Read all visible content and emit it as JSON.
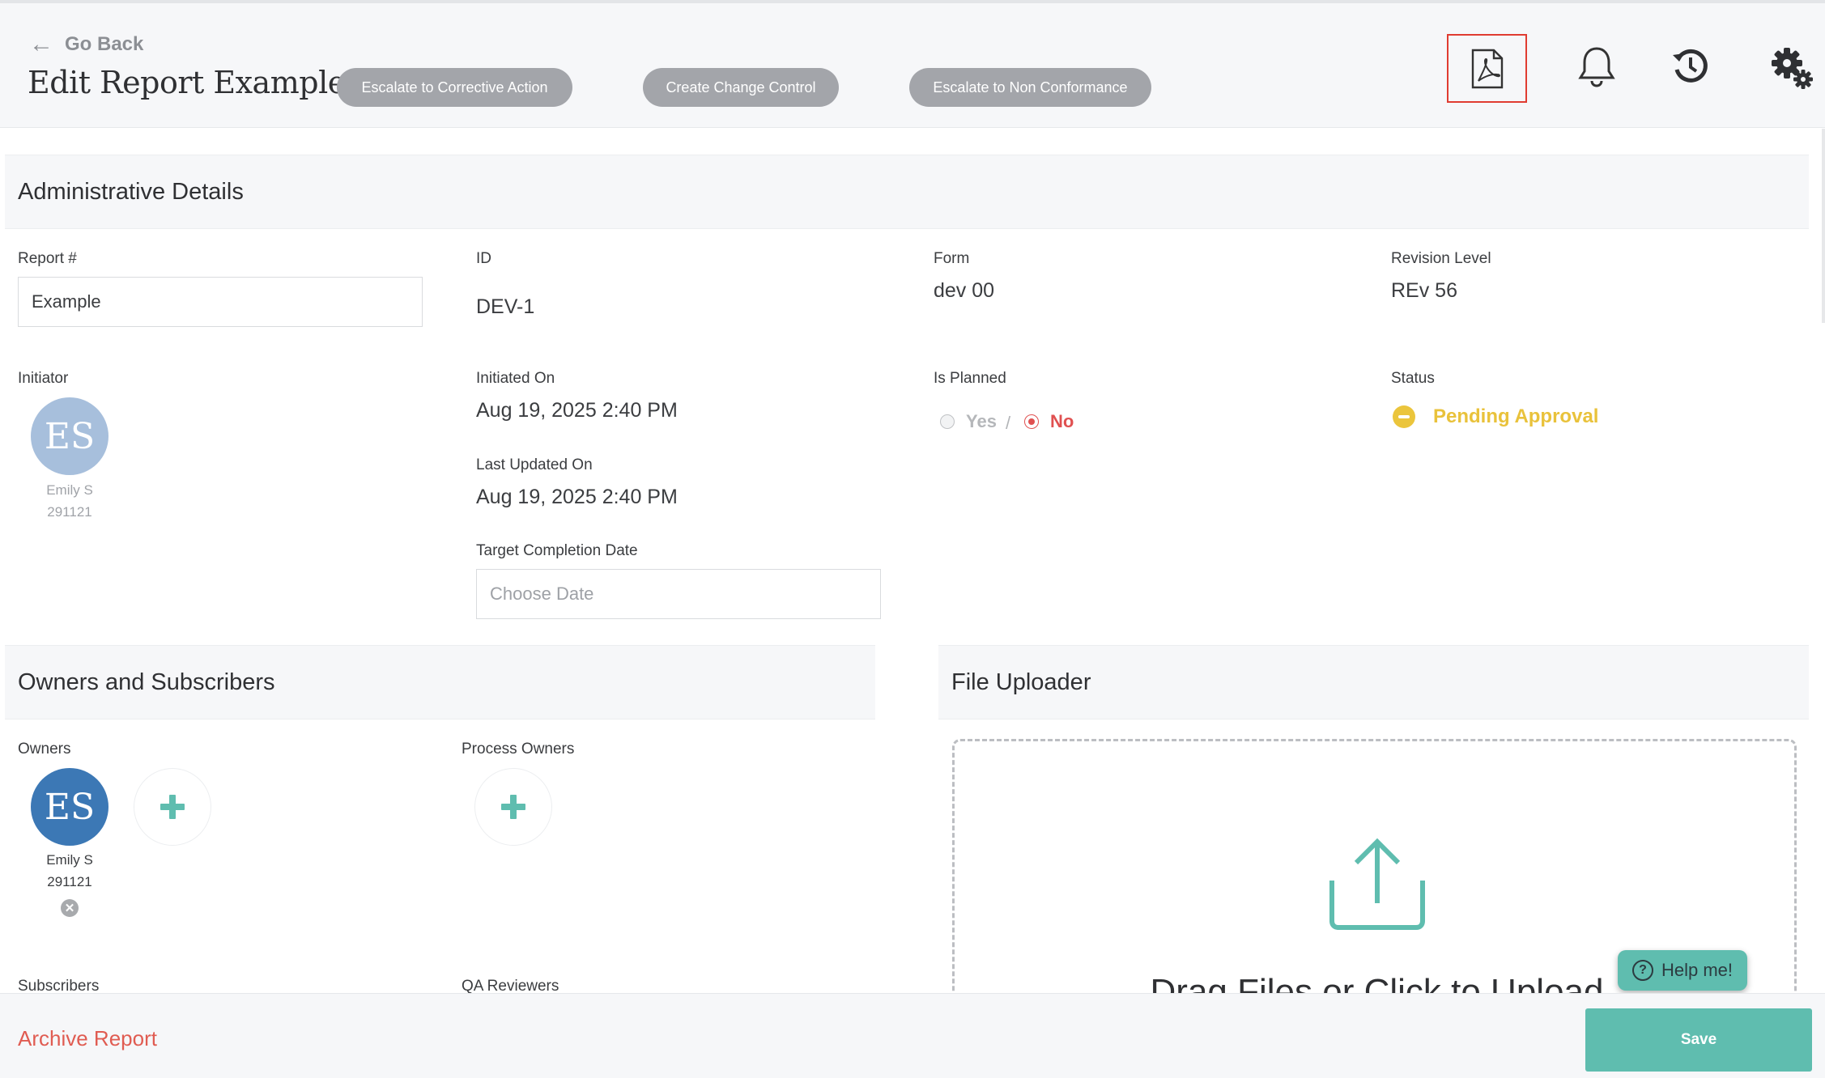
{
  "header": {
    "go_back": "Go Back",
    "title": "Edit Report Example",
    "actions": [
      "Escalate to Corrective Action",
      "Create Change Control",
      "Escalate to Non Conformance"
    ],
    "icons": [
      "pdf-icon",
      "bell-icon",
      "history-icon",
      "gear-icon"
    ]
  },
  "admin": {
    "title": "Administrative Details",
    "report_label": "Report #",
    "report_value": "Example",
    "id_label": "ID",
    "id_value": "DEV-1",
    "form_label": "Form",
    "form_value": "dev 00",
    "revision_label": "Revision Level",
    "revision_value": "REv 56",
    "initiator_label": "Initiator",
    "initiator_initials": "ES",
    "initiator_name": "Emily S",
    "initiator_id": "291121",
    "initiated_label": "Initiated On",
    "initiated_value": "Aug 19, 2025 2:40 PM",
    "updated_label": "Last Updated On",
    "updated_value": "Aug 19, 2025 2:40 PM",
    "target_label": "Target Completion Date",
    "target_placeholder": "Choose Date",
    "planned_label": "Is Planned",
    "planned_yes": "Yes",
    "planned_sep": "/",
    "planned_no": "No",
    "status_label": "Status",
    "status_value": "Pending Approval"
  },
  "owners": {
    "title": "Owners and Subscribers",
    "owners_label": "Owners",
    "owner_initials": "ES",
    "owner_name": "Emily S",
    "owner_id": "291121",
    "process_owners_label": "Process Owners",
    "subscribers_label": "Subscribers",
    "qa_label": "QA Reviewers"
  },
  "uploader": {
    "title": "File Uploader",
    "text": "Drag Files or Click to Upload"
  },
  "help": {
    "label": "Help me!"
  },
  "footer": {
    "archive": "Archive Report",
    "save": "Save"
  },
  "colors": {
    "accent": "#5fbdaf",
    "pending": "#e9c23b",
    "danger": "#e05c52",
    "pill": "#a3a5aa"
  }
}
